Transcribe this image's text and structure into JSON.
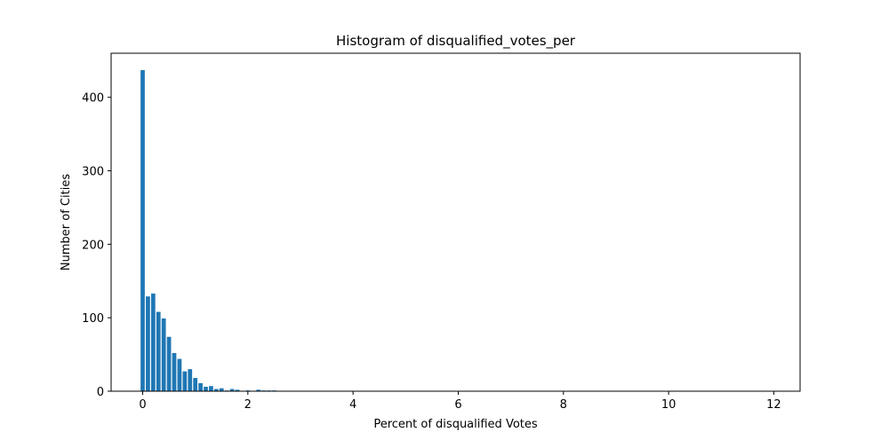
{
  "chart_data": {
    "type": "bar",
    "title": "Histogram of disqualified_votes_per",
    "xlabel": "Percent of disqualified Votes",
    "ylabel": "Number of Cities",
    "xlim": [
      -0.6,
      12.5
    ],
    "ylim": [
      0,
      460
    ],
    "xticks": [
      0,
      2,
      4,
      6,
      8,
      10,
      12
    ],
    "yticks": [
      0,
      100,
      200,
      300,
      400
    ],
    "bar_width": 0.1,
    "bar_color": "#1f77b4",
    "grid": false,
    "x": [
      0.0,
      0.1,
      0.2,
      0.3,
      0.4,
      0.5,
      0.6,
      0.7,
      0.8,
      0.9,
      1.0,
      1.1,
      1.2,
      1.3,
      1.4,
      1.5,
      1.6,
      1.7,
      1.8,
      1.9,
      2.0,
      2.1,
      2.2,
      2.3,
      2.4,
      2.5,
      2.6,
      2.7,
      2.8,
      2.9,
      3.0
    ],
    "values": [
      437,
      129,
      133,
      108,
      99,
      74,
      52,
      44,
      27,
      30,
      18,
      11,
      6,
      7,
      3,
      4,
      1,
      3,
      2,
      0,
      1,
      0,
      2,
      1,
      1,
      1,
      0,
      0,
      0,
      0,
      0
    ]
  }
}
